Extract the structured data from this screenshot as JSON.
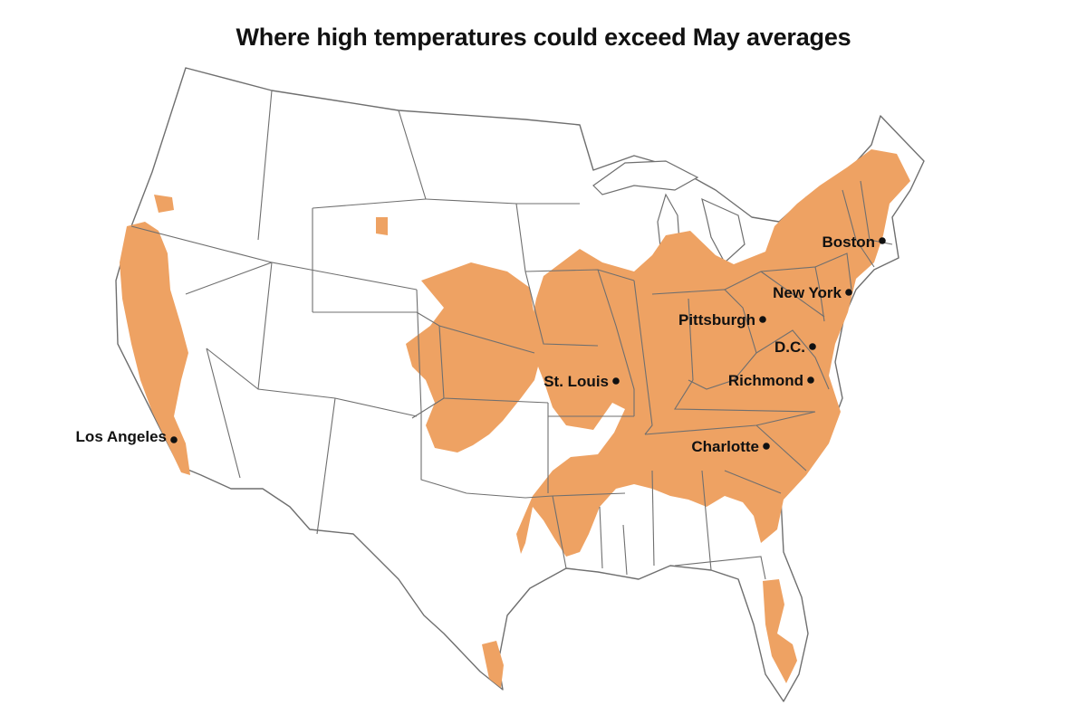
{
  "title": "Where high temperatures could exceed May averages",
  "colors": {
    "above_average": "#eea263",
    "state_border": "#6f6f6f",
    "land": "#ffffff",
    "city_dot": "#111111"
  },
  "cities": [
    {
      "name": "Los Angeles"
    },
    {
      "name": "St. Louis"
    },
    {
      "name": "Pittsburgh"
    },
    {
      "name": "Boston"
    },
    {
      "name": "New York"
    },
    {
      "name": "D.C."
    },
    {
      "name": "Richmond"
    },
    {
      "name": "Charlotte"
    }
  ]
}
